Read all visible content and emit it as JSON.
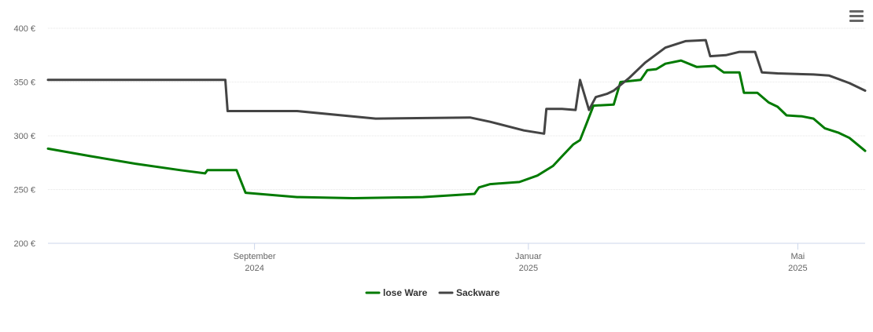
{
  "menu": {
    "icon": "hamburger-menu-icon"
  },
  "chart_data": {
    "type": "line",
    "title": "",
    "xlabel": "",
    "ylabel": "",
    "ylim": [
      200,
      400
    ],
    "xlim": [
      "2024-06-01",
      "2025-05-31"
    ],
    "grid": true,
    "legend_position": "bottom-center",
    "y_ticks": [
      {
        "value": 200,
        "label": "200 €"
      },
      {
        "value": 250,
        "label": "250 €"
      },
      {
        "value": 300,
        "label": "300 €"
      },
      {
        "value": 350,
        "label": "350 €"
      },
      {
        "value": 400,
        "label": "400 €"
      }
    ],
    "x_ticks": [
      {
        "date": "2024-09-01",
        "month": "September",
        "year": "2024"
      },
      {
        "date": "2025-01-01",
        "month": "Januar",
        "year": "2025"
      },
      {
        "date": "2025-05-01",
        "month": "Mai",
        "year": "2025"
      }
    ],
    "series": [
      {
        "name": "lose Ware",
        "color": "#007a00",
        "points": [
          [
            "2024-06-01",
            288
          ],
          [
            "2024-06-20",
            281
          ],
          [
            "2024-07-10",
            274
          ],
          [
            "2024-07-30",
            268
          ],
          [
            "2024-08-10",
            265
          ],
          [
            "2024-08-11",
            268
          ],
          [
            "2024-08-24",
            268
          ],
          [
            "2024-08-28",
            247
          ],
          [
            "2024-09-20",
            243
          ],
          [
            "2024-10-15",
            242
          ],
          [
            "2024-11-15",
            243
          ],
          [
            "2024-12-08",
            246
          ],
          [
            "2024-12-10",
            252
          ],
          [
            "2024-12-15",
            255
          ],
          [
            "2024-12-28",
            257
          ],
          [
            "2025-01-05",
            263
          ],
          [
            "2025-01-12",
            272
          ],
          [
            "2025-01-16",
            281
          ],
          [
            "2025-01-21",
            292
          ],
          [
            "2025-01-24",
            296
          ],
          [
            "2025-01-27",
            312
          ],
          [
            "2025-01-30",
            328
          ],
          [
            "2025-02-08",
            329
          ],
          [
            "2025-02-11",
            350
          ],
          [
            "2025-02-20",
            352
          ],
          [
            "2025-02-23",
            361
          ],
          [
            "2025-02-27",
            362
          ],
          [
            "2025-03-03",
            367
          ],
          [
            "2025-03-10",
            370
          ],
          [
            "2025-03-17",
            364
          ],
          [
            "2025-03-25",
            365
          ],
          [
            "2025-03-29",
            359
          ],
          [
            "2025-04-05",
            359
          ],
          [
            "2025-04-07",
            340
          ],
          [
            "2025-04-13",
            340
          ],
          [
            "2025-04-18",
            331
          ],
          [
            "2025-04-22",
            327
          ],
          [
            "2025-04-26",
            319
          ],
          [
            "2025-05-03",
            318
          ],
          [
            "2025-05-08",
            316
          ],
          [
            "2025-05-13",
            307
          ],
          [
            "2025-05-19",
            303
          ],
          [
            "2025-05-24",
            298
          ],
          [
            "2025-05-31",
            286
          ]
        ]
      },
      {
        "name": "Sackware",
        "color": "#444444",
        "points": [
          [
            "2024-06-01",
            352
          ],
          [
            "2024-08-19",
            352
          ],
          [
            "2024-08-20",
            323
          ],
          [
            "2024-09-20",
            323
          ],
          [
            "2024-10-25",
            316
          ],
          [
            "2024-12-06",
            317
          ],
          [
            "2024-12-15",
            313
          ],
          [
            "2024-12-30",
            305
          ],
          [
            "2025-01-08",
            302
          ],
          [
            "2025-01-09",
            325
          ],
          [
            "2025-01-16",
            325
          ],
          [
            "2025-01-22",
            324
          ],
          [
            "2025-01-24",
            352
          ],
          [
            "2025-01-28",
            324
          ],
          [
            "2025-01-31",
            336
          ],
          [
            "2025-02-05",
            339
          ],
          [
            "2025-02-08",
            342
          ],
          [
            "2025-02-15",
            354
          ],
          [
            "2025-02-22",
            368
          ],
          [
            "2025-03-03",
            382
          ],
          [
            "2025-03-12",
            388
          ],
          [
            "2025-03-21",
            389
          ],
          [
            "2025-03-23",
            374
          ],
          [
            "2025-03-30",
            375
          ],
          [
            "2025-04-05",
            378
          ],
          [
            "2025-04-12",
            378
          ],
          [
            "2025-04-15",
            359
          ],
          [
            "2025-04-22",
            358
          ],
          [
            "2025-05-08",
            357
          ],
          [
            "2025-05-15",
            356
          ],
          [
            "2025-05-24",
            349
          ],
          [
            "2025-05-31",
            342
          ]
        ]
      }
    ]
  }
}
